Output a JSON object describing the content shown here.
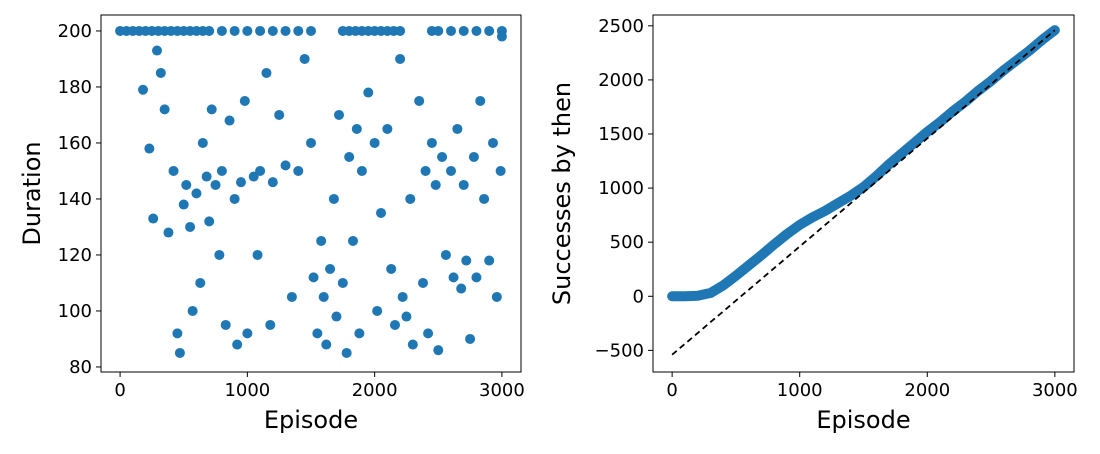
{
  "chart_data": [
    {
      "type": "scatter",
      "xlabel": "Episode",
      "ylabel": "Duration",
      "color": "#1f77b4",
      "xlim": [
        -150,
        3150
      ],
      "ylim": [
        78.2,
        205.7
      ],
      "xticks": [
        0,
        1000,
        2000,
        3000
      ],
      "yticks": [
        80,
        100,
        120,
        140,
        160,
        180,
        200
      ],
      "x": [
        0,
        50,
        100,
        150,
        200,
        250,
        300,
        350,
        400,
        450,
        500,
        550,
        600,
        650,
        700,
        800,
        900,
        1000,
        1100,
        1200,
        1300,
        1400,
        1500,
        1750,
        1800,
        1850,
        1900,
        1950,
        2000,
        2050,
        2100,
        2150,
        2200,
        2450,
        2500,
        2600,
        2700,
        2800,
        2900,
        3000,
        180,
        230,
        260,
        290,
        320,
        350,
        380,
        420,
        450,
        470,
        500,
        520,
        550,
        570,
        600,
        630,
        650,
        680,
        700,
        720,
        750,
        780,
        800,
        830,
        860,
        900,
        920,
        950,
        980,
        1000,
        1050,
        1080,
        1100,
        1150,
        1180,
        1200,
        1250,
        1300,
        1350,
        1400,
        1450,
        1500,
        1520,
        1550,
        1580,
        1600,
        1620,
        1650,
        1680,
        1700,
        1720,
        1750,
        1780,
        1800,
        1830,
        1860,
        1880,
        1900,
        1950,
        2000,
        2020,
        2050,
        2100,
        2130,
        2160,
        2200,
        2220,
        2250,
        2280,
        2300,
        2350,
        2380,
        2400,
        2420,
        2450,
        2480,
        2500,
        2530,
        2560,
        2600,
        2620,
        2650,
        2680,
        2700,
        2720,
        2750,
        2780,
        2800,
        2830,
        2860,
        2900,
        2930,
        2960,
        2990,
        3000
      ],
      "y": [
        200,
        200,
        200,
        200,
        200,
        200,
        200,
        200,
        200,
        200,
        200,
        200,
        200,
        200,
        200,
        200,
        200,
        200,
        200,
        200,
        200,
        200,
        200,
        200,
        200,
        200,
        200,
        200,
        200,
        200,
        200,
        200,
        200,
        200,
        200,
        200,
        200,
        200,
        200,
        200,
        179,
        158,
        133,
        193,
        185,
        172,
        128,
        150,
        92,
        85,
        138,
        145,
        130,
        100,
        142,
        110,
        160,
        148,
        132,
        172,
        145,
        120,
        150,
        95,
        168,
        140,
        88,
        146,
        175,
        92,
        148,
        120,
        150,
        185,
        95,
        146,
        170,
        152,
        105,
        150,
        190,
        160,
        112,
        92,
        125,
        105,
        88,
        115,
        140,
        98,
        170,
        110,
        85,
        155,
        125,
        165,
        92,
        150,
        178,
        160,
        100,
        135,
        165,
        115,
        95,
        190,
        105,
        98,
        140,
        88,
        175,
        110,
        150,
        92,
        160,
        145,
        86,
        155,
        120,
        150,
        112,
        165,
        108,
        145,
        118,
        90,
        155,
        112,
        175,
        140,
        118,
        160,
        105,
        150,
        198
      ]
    },
    {
      "type": "line",
      "xlabel": "Episode",
      "ylabel": "Successes by then",
      "color": "#1f77b4",
      "xlim": [
        -150,
        3150
      ],
      "ylim": [
        -700,
        2600
      ],
      "xticks": [
        0,
        1000,
        2000,
        3000
      ],
      "yticks": [
        {
          "value": -500,
          "label": "−500"
        },
        0,
        500,
        1000,
        1500,
        2000,
        2500
      ],
      "x": [
        0,
        100,
        200,
        300,
        400,
        500,
        600,
        700,
        800,
        900,
        1000,
        1100,
        1200,
        1300,
        1400,
        1500,
        1600,
        1700,
        1800,
        1900,
        2000,
        2100,
        2200,
        2300,
        2400,
        2500,
        2600,
        2700,
        2800,
        2900,
        3000
      ],
      "values": [
        0,
        0,
        5,
        30,
        100,
        190,
        285,
        380,
        480,
        575,
        660,
        730,
        790,
        860,
        930,
        1010,
        1110,
        1220,
        1320,
        1420,
        1520,
        1610,
        1710,
        1800,
        1900,
        1990,
        2090,
        2180,
        2270,
        2370,
        2460
      ],
      "fit_line": {
        "x": [
          0,
          3000
        ],
        "values": [
          -540,
          2460
        ],
        "color": "#000000",
        "dash": true
      }
    }
  ]
}
